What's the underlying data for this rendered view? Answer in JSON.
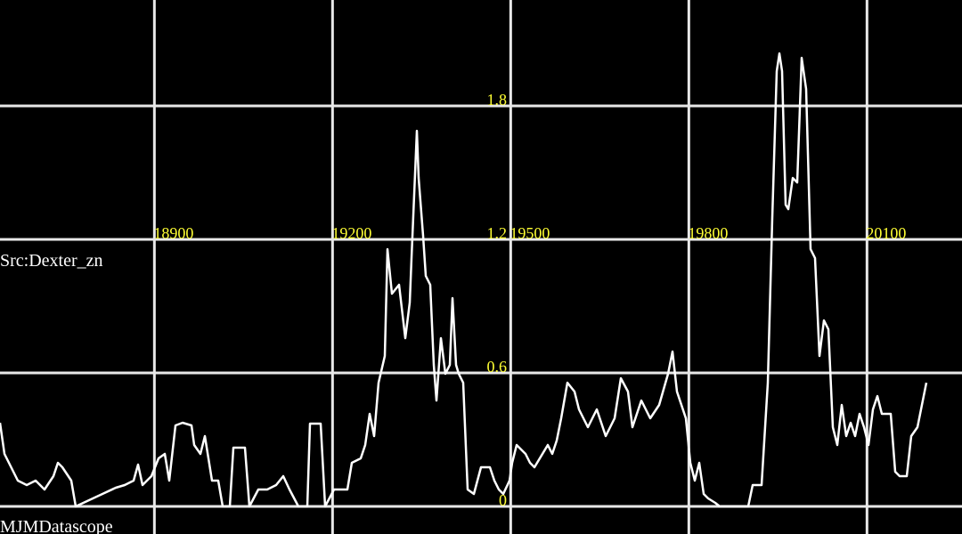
{
  "chart_data": {
    "type": "line",
    "source_label": "Src:Dexter_zn",
    "footer": "MJMDatascope",
    "color": "#ffffff",
    "grid": true,
    "xlim": [
      18640,
      20260
    ],
    "ylim": [
      -0.124,
      2.276
    ],
    "xticks": [
      18900,
      19200,
      19500,
      19800,
      20100
    ],
    "yticks": [
      0,
      0.6,
      1.2,
      1.8
    ],
    "x": [
      18640,
      18647.5,
      18655,
      18662.5,
      18670,
      18685,
      18700,
      18715,
      18730,
      18737.5,
      18745,
      18760,
      18767.5,
      18812.5,
      18835,
      18850,
      18865,
      18872.5,
      18880,
      18895,
      18907,
      18917.5,
      18925,
      18935.5,
      18947.5,
      18962.5,
      18967,
      18977.5,
      18985,
      18997,
      19007.5,
      19015,
      19027,
      19033,
      19052.5,
      19060,
      19075,
      19090,
      19105,
      19117,
      19127.5,
      19142.5,
      19157.5,
      19162,
      19180,
      19187.5,
      19202.5,
      19225,
      19232.5,
      19247.5,
      19255,
      19262.5,
      19270,
      19277.5,
      19288,
      19292.5,
      19300,
      19312,
      19322.5,
      19330,
      19333,
      19342,
      19345,
      19352.5,
      19357,
      19364.5,
      19370.5,
      19375,
      19382.5,
      19390,
      19397.5,
      19402,
      19408,
      19412.5,
      19420,
      19427.5,
      19438,
      19450,
      19465,
      19472.5,
      19480,
      19487.5,
      19498,
      19502.5,
      19510,
      19525,
      19532.5,
      19540,
      19562.5,
      19570,
      19577.5,
      19585,
      19595.5,
      19607.5,
      19615,
      19630,
      19645,
      19660,
      19675,
      19685.5,
      19697.5,
      19705,
      19720,
      19735,
      19750,
      19765,
      19772.5,
      19780,
      19787.5,
      19795,
      19802.5,
      19810,
      19817.5,
      19825,
      19832.5,
      19844.5,
      19852,
      19900,
      19907.5,
      19922.5,
      19933,
      19940.5,
      19948,
      19952.5,
      19957,
      19963,
      19967.5,
      19975,
      19982.5,
      19990,
      19997.5,
      20005,
      20012.5,
      20020,
      20027.5,
      20035,
      20042.5,
      20050,
      20057.5,
      20065,
      20072.5,
      20080,
      20087.5,
      20095,
      20102.5,
      20110,
      20117.5,
      20125,
      20140,
      20147.5,
      20155,
      20167,
      20174.5,
      20185,
      20200
    ],
    "values": [
      0.376,
      0.236,
      0.196,
      0.156,
      0.116,
      0.096,
      0.116,
      0.076,
      0.136,
      0.196,
      0.176,
      0.116,
      0,
      0.056,
      0.084,
      0.096,
      0.116,
      0.188,
      0.096,
      0.136,
      0.216,
      0.236,
      0.116,
      0.364,
      0.376,
      0.364,
      0.276,
      0.236,
      0.316,
      0.116,
      0.116,
      0,
      0,
      0.264,
      0.264,
      0,
      0.076,
      0.076,
      0.096,
      0.136,
      0.076,
      0,
      0,
      0.372,
      0.372,
      0,
      0.076,
      0.076,
      0.196,
      0.216,
      0.276,
      0.416,
      0.316,
      0.556,
      0.676,
      1.156,
      0.956,
      0.996,
      0.756,
      0.916,
      1.116,
      1.688,
      1.476,
      1.216,
      1.036,
      0.996,
      0.636,
      0.476,
      0.756,
      0.596,
      0.636,
      0.936,
      0.636,
      0.596,
      0.556,
      0.076,
      0.056,
      0.176,
      0.176,
      0.116,
      0.076,
      0.056,
      0.116,
      0.196,
      0.276,
      0.236,
      0.196,
      0.176,
      0.276,
      0.236,
      0.296,
      0.396,
      0.556,
      0.516,
      0.436,
      0.356,
      0.436,
      0.316,
      0.396,
      0.576,
      0.516,
      0.356,
      0.476,
      0.396,
      0.456,
      0.596,
      0.696,
      0.516,
      0.456,
      0.396,
      0.196,
      0.116,
      0.196,
      0.056,
      0.036,
      0.016,
      0,
      0,
      0.096,
      0.096,
      0.556,
      1.296,
      1.956,
      2.036,
      1.956,
      1.356,
      1.336,
      1.476,
      1.456,
      2.016,
      1.876,
      1.156,
      1.116,
      0.676,
      0.836,
      0.796,
      0.356,
      0.276,
      0.456,
      0.316,
      0.376,
      0.316,
      0.416,
      0.356,
      0.276,
      0.436,
      0.496,
      0.416,
      0.416,
      0.156,
      0.136,
      0.136,
      0.316,
      0.356,
      0.556
    ]
  }
}
